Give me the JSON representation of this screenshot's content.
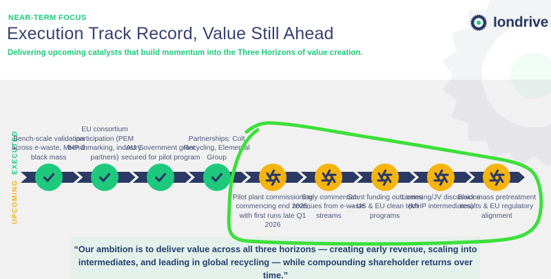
{
  "header": {
    "kicker": "NEAR-TERM FOCUS",
    "title": "Execution Track Record, Value Still Ahead",
    "subtitle": "Delivering upcoming catalysts that build momentum into the Three Horizons of value creation."
  },
  "logo": {
    "name": "Iondrive"
  },
  "timeline": {
    "executed_label": "EXECUTED",
    "upcoming_label": "UPCOMING",
    "executed": [
      "Bench-scale validation across e-waste, MHP & black mass",
      "EU consortium participation (PEM benchmarking, industry partners)",
      "AU Government grant secured for pilot program",
      "Partnerships: Colt Recycling, Elemental Group"
    ],
    "upcoming": [
      "Pilot plant commissioning commencing end 2025, with first runs late Q1 2026",
      "Early commercial revenues from e-waste streams",
      "Grant funding outcomes – US & EU clean tech programs",
      "Licensing/JV discussions (MHP intermediates)",
      "Black mass pretreatment results & EU regulatory alignment"
    ]
  },
  "quote": {
    "text": "“Our ambition is to deliver value across all three horizons — creating early revenue, scaling into intermediates, and leading in global recycling — while compounding shareholder returns over time.”"
  },
  "icons": {
    "logo": "pinwheel-logo-icon",
    "executed": "check-icon",
    "upcoming": "aperture-icon",
    "annotation": "hand-drawn-circle"
  },
  "colors": {
    "navy": "#2b3964",
    "green": "#1ec97d",
    "yellow": "#f6b40e",
    "annotation": "#3ddf3b",
    "quote_bg": "#e4f0ea",
    "body_bg": "#f1f1f2"
  }
}
